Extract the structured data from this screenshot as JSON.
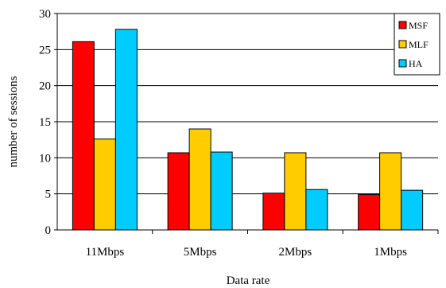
{
  "chart_data": {
    "type": "bar",
    "title": "",
    "xlabel": "Data rate",
    "ylabel": "number of sessions",
    "ylim": [
      0,
      30
    ],
    "yticks": [
      0,
      5,
      10,
      15,
      20,
      25,
      30
    ],
    "grid": "horizontal",
    "legend_position": "top-right",
    "categories": [
      "11Mbps",
      "5Mbps",
      "2Mbps",
      "1Mbps"
    ],
    "series": [
      {
        "name": "MSF",
        "color": "#ff0000",
        "values": [
          26.1,
          10.7,
          5.1,
          4.9
        ]
      },
      {
        "name": "MLF",
        "color": "#ffcc00",
        "values": [
          12.6,
          14.0,
          10.7,
          10.7
        ]
      },
      {
        "name": "HA",
        "color": "#00ccff",
        "values": [
          27.8,
          10.8,
          5.6,
          5.5
        ]
      }
    ]
  }
}
